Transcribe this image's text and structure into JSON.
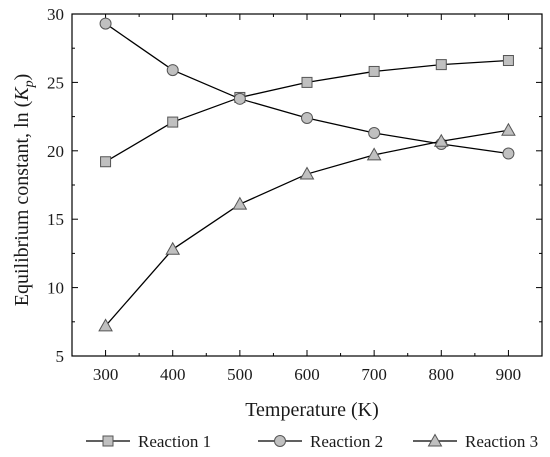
{
  "chart_data": {
    "type": "line",
    "title": "",
    "xlabel": "Temperature (K)",
    "ylabel_main": "Equilibrium constant, ln (",
    "ylabel_k": "K",
    "ylabel_sub": "p",
    "ylabel_close": ")",
    "x": [
      300,
      400,
      500,
      600,
      700,
      800,
      900
    ],
    "xlim": [
      250,
      950
    ],
    "ylim": [
      5,
      30
    ],
    "xticks": [
      300,
      400,
      500,
      600,
      700,
      800,
      900
    ],
    "yticks": [
      5,
      10,
      15,
      20,
      25,
      30
    ],
    "grid": false,
    "legend_position": "bottom",
    "series": [
      {
        "name": "Reaction 1",
        "marker": "square",
        "values": [
          19.2,
          22.1,
          23.9,
          25.0,
          25.8,
          26.3,
          26.6
        ]
      },
      {
        "name": "Reaction 2",
        "marker": "circle",
        "values": [
          29.3,
          25.9,
          23.8,
          22.4,
          21.3,
          20.5,
          19.8
        ]
      },
      {
        "name": "Reaction 3",
        "marker": "triangle",
        "values": [
          7.2,
          12.8,
          16.1,
          18.3,
          19.7,
          20.7,
          21.5
        ]
      }
    ],
    "colors": {
      "line": "#000000",
      "marker_fill": "#c0c0c0",
      "marker_stroke": "#555555"
    }
  }
}
